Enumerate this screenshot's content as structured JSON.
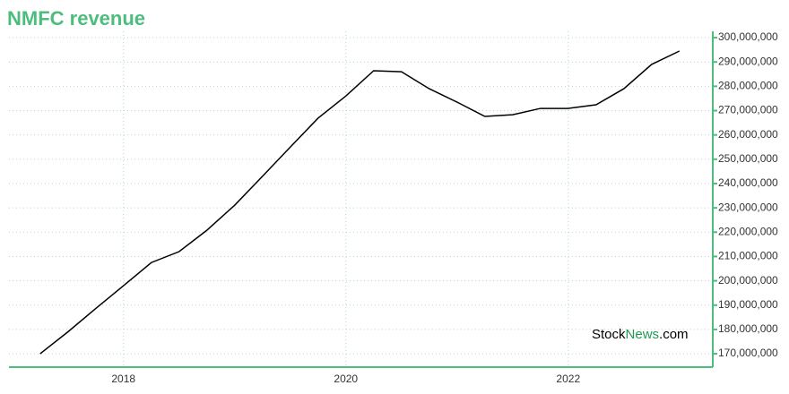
{
  "chart_data": {
    "type": "line",
    "title": "NMFC revenue",
    "x": [
      2017.25,
      2017.5,
      2017.75,
      2018.0,
      2018.25,
      2018.5,
      2018.75,
      2019.0,
      2019.25,
      2019.5,
      2019.75,
      2020.0,
      2020.25,
      2020.5,
      2020.75,
      2021.0,
      2021.25,
      2021.5,
      2021.75,
      2022.0,
      2022.25,
      2022.5,
      2022.75,
      2023.0
    ],
    "series": [
      {
        "name": "NMFC revenue",
        "color": "#000000",
        "values": [
          170000000,
          179000000,
          188600000,
          198000000,
          207500000,
          212000000,
          220800000,
          231100000,
          243000000,
          255000000,
          266900000,
          276000000,
          286400000,
          286000000,
          279000000,
          273500000,
          267600000,
          268300000,
          270900000,
          270900000,
          272400000,
          279000000,
          289000000,
          294500000
        ]
      }
    ],
    "xlim": [
      2016.97,
      2023.3
    ],
    "xticks": [
      2018,
      2020,
      2022
    ],
    "ylim": [
      164500000,
      302600000
    ],
    "yticks": [
      {
        "value": 170000000,
        "label": "170,000,000"
      },
      {
        "value": 180000000,
        "label": "180,000,000"
      },
      {
        "value": 190000000,
        "label": "190,000,000"
      },
      {
        "value": 200000000,
        "label": "200,000,000"
      },
      {
        "value": 210000000,
        "label": "210,000,000"
      },
      {
        "value": 220000000,
        "label": "220,000,000"
      },
      {
        "value": 230000000,
        "label": "230,000,000"
      },
      {
        "value": 240000000,
        "label": "240,000,000"
      },
      {
        "value": 250000000,
        "label": "250,000,000"
      },
      {
        "value": 260000000,
        "label": "260,000,000"
      },
      {
        "value": 270000000,
        "label": "270,000,000"
      },
      {
        "value": 280000000,
        "label": "280,000,000"
      },
      {
        "value": 290000000,
        "label": "290,000,000"
      },
      {
        "value": 300000000,
        "label": "300,000,000"
      }
    ],
    "grid": true,
    "axis_color": "#4dbd7e",
    "watermark": [
      "Stock",
      "News",
      ".com"
    ]
  }
}
